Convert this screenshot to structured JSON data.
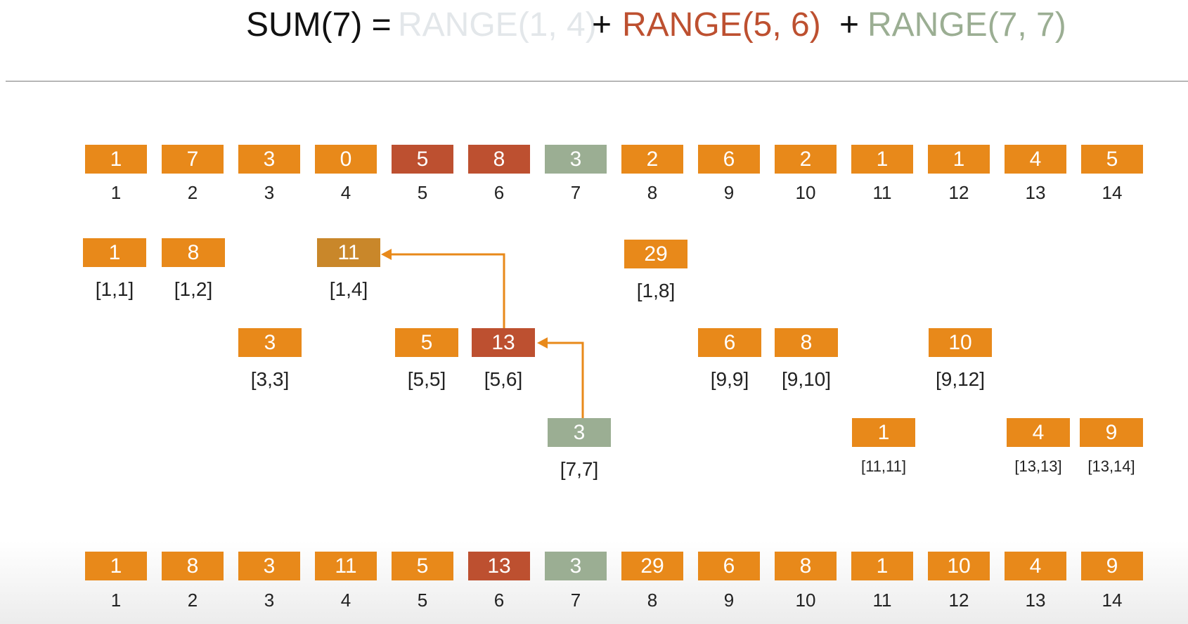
{
  "colors": {
    "orange": "#E8891A",
    "dark_red": "#BD5030",
    "sage": "#9BAE93",
    "faded": "#E3E7EA",
    "tan": "#C9872A",
    "text": "#222222"
  },
  "title": {
    "sum_text": "SUM(7) =",
    "range1_text": "RANGE(1, 4)",
    "plus1_text": "+",
    "range2_text": "RANGE(5, 6)",
    "plus2_text": "+",
    "range3_text": "RANGE(7, 7)"
  },
  "input_array": {
    "values": [
      "1",
      "7",
      "3",
      "0",
      "5",
      "8",
      "3",
      "2",
      "6",
      "2",
      "1",
      "1",
      "4",
      "5"
    ],
    "indices": [
      "1",
      "2",
      "3",
      "4",
      "5",
      "6",
      "7",
      "8",
      "9",
      "10",
      "11",
      "12",
      "13",
      "14"
    ]
  },
  "tree_nodes": [
    {
      "value": "1",
      "range": "[1,1]"
    },
    {
      "value": "8",
      "range": "[1,2]"
    },
    {
      "value": "11",
      "range": "[1,4]"
    },
    {
      "value": "29",
      "range": "[1,8]"
    },
    {
      "value": "3",
      "range": "[3,3]"
    },
    {
      "value": "5",
      "range": "[5,5]"
    },
    {
      "value": "13",
      "range": "[5,6]"
    },
    {
      "value": "6",
      "range": "[9,9]"
    },
    {
      "value": "8",
      "range": "[9,10]"
    },
    {
      "value": "10",
      "range": "[9,12]"
    },
    {
      "value": "3",
      "range": "[7,7]"
    },
    {
      "value": "1",
      "range": "[11,11]"
    },
    {
      "value": "4",
      "range": "[13,13]"
    },
    {
      "value": "9",
      "range": "[13,14]"
    }
  ],
  "fenwick_array": {
    "values": [
      "1",
      "8",
      "3",
      "11",
      "5",
      "13",
      "3",
      "29",
      "6",
      "8",
      "1",
      "10",
      "4",
      "9"
    ],
    "indices": [
      "1",
      "2",
      "3",
      "4",
      "5",
      "6",
      "7",
      "8",
      "9",
      "10",
      "11",
      "12",
      "13",
      "14"
    ]
  }
}
